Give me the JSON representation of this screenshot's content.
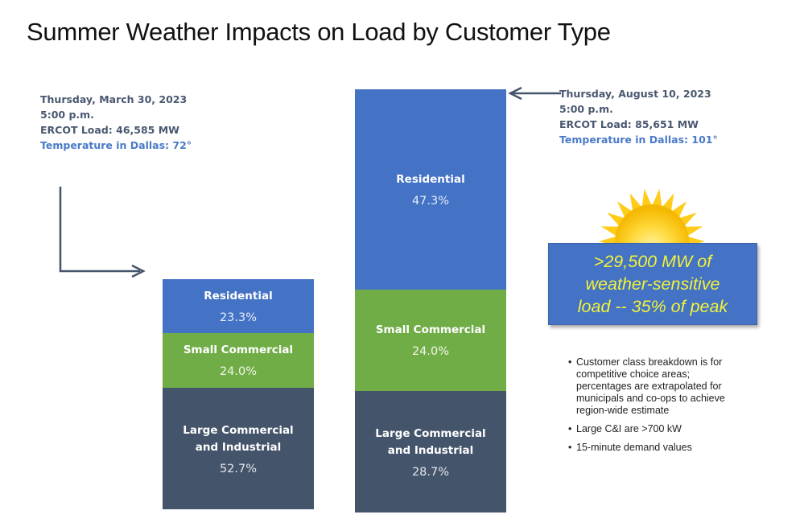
{
  "title": "Summer Weather Impacts on Load by Customer Type",
  "snapshots": [
    {
      "date": "Thursday, March 30, 2023",
      "time": "5:00 p.m.",
      "load": "ERCOT Load: 46,585 MW",
      "temperature": "Temperature in Dallas: 72°"
    },
    {
      "date": "Thursday, August 10, 2023",
      "time": "5:00 p.m.",
      "load": "ERCOT Load:  85,651 MW",
      "temperature": "Temperature in Dallas: 101°"
    }
  ],
  "callout": {
    "lines": [
      ">29,500 MW of",
      "weather-sensitive",
      "load -- 35% of peak"
    ],
    "icon": "sun-icon"
  },
  "notes": [
    "Customer class breakdown is for competitive choice areas; percentages are extrapolated for municipals and co-ops to achieve region-wide estimate",
    "Large C&I are >700 kW",
    "15-minute demand values"
  ],
  "colors": {
    "residential": "#4472c4",
    "small_commercial": "#70ad47",
    "large_ci": "#44546a",
    "callout_text": "#f2f23a",
    "temperature_text": "#4a7ac8",
    "arrow": "#44546a"
  },
  "chart_data": {
    "type": "bar",
    "stacked": true,
    "title": "Summer Weather Impacts on Load by Customer Type",
    "categories": [
      "Thursday, March 30, 2023 5:00 p.m.",
      "Thursday, August 10, 2023 5:00 p.m."
    ],
    "totals_mw": [
      46585,
      85651
    ],
    "series": [
      {
        "name": "Large Commercial and Industrial",
        "label_lines": [
          "Large Commercial",
          "and Industrial"
        ],
        "values": [
          52.7,
          28.7
        ],
        "labels": [
          "52.7%",
          "28.7%"
        ]
      },
      {
        "name": "Small Commercial",
        "label_lines": [
          "Small Commercial"
        ],
        "values": [
          24.0,
          24.0
        ],
        "labels": [
          "24.0%",
          "24.0%"
        ]
      },
      {
        "name": "Residential",
        "label_lines": [
          "Residential"
        ],
        "values": [
          23.3,
          47.3
        ],
        "labels": [
          "23.3%",
          "47.3%"
        ]
      }
    ],
    "xlabel": "",
    "ylabel": "",
    "grid": false,
    "legend": "none"
  }
}
